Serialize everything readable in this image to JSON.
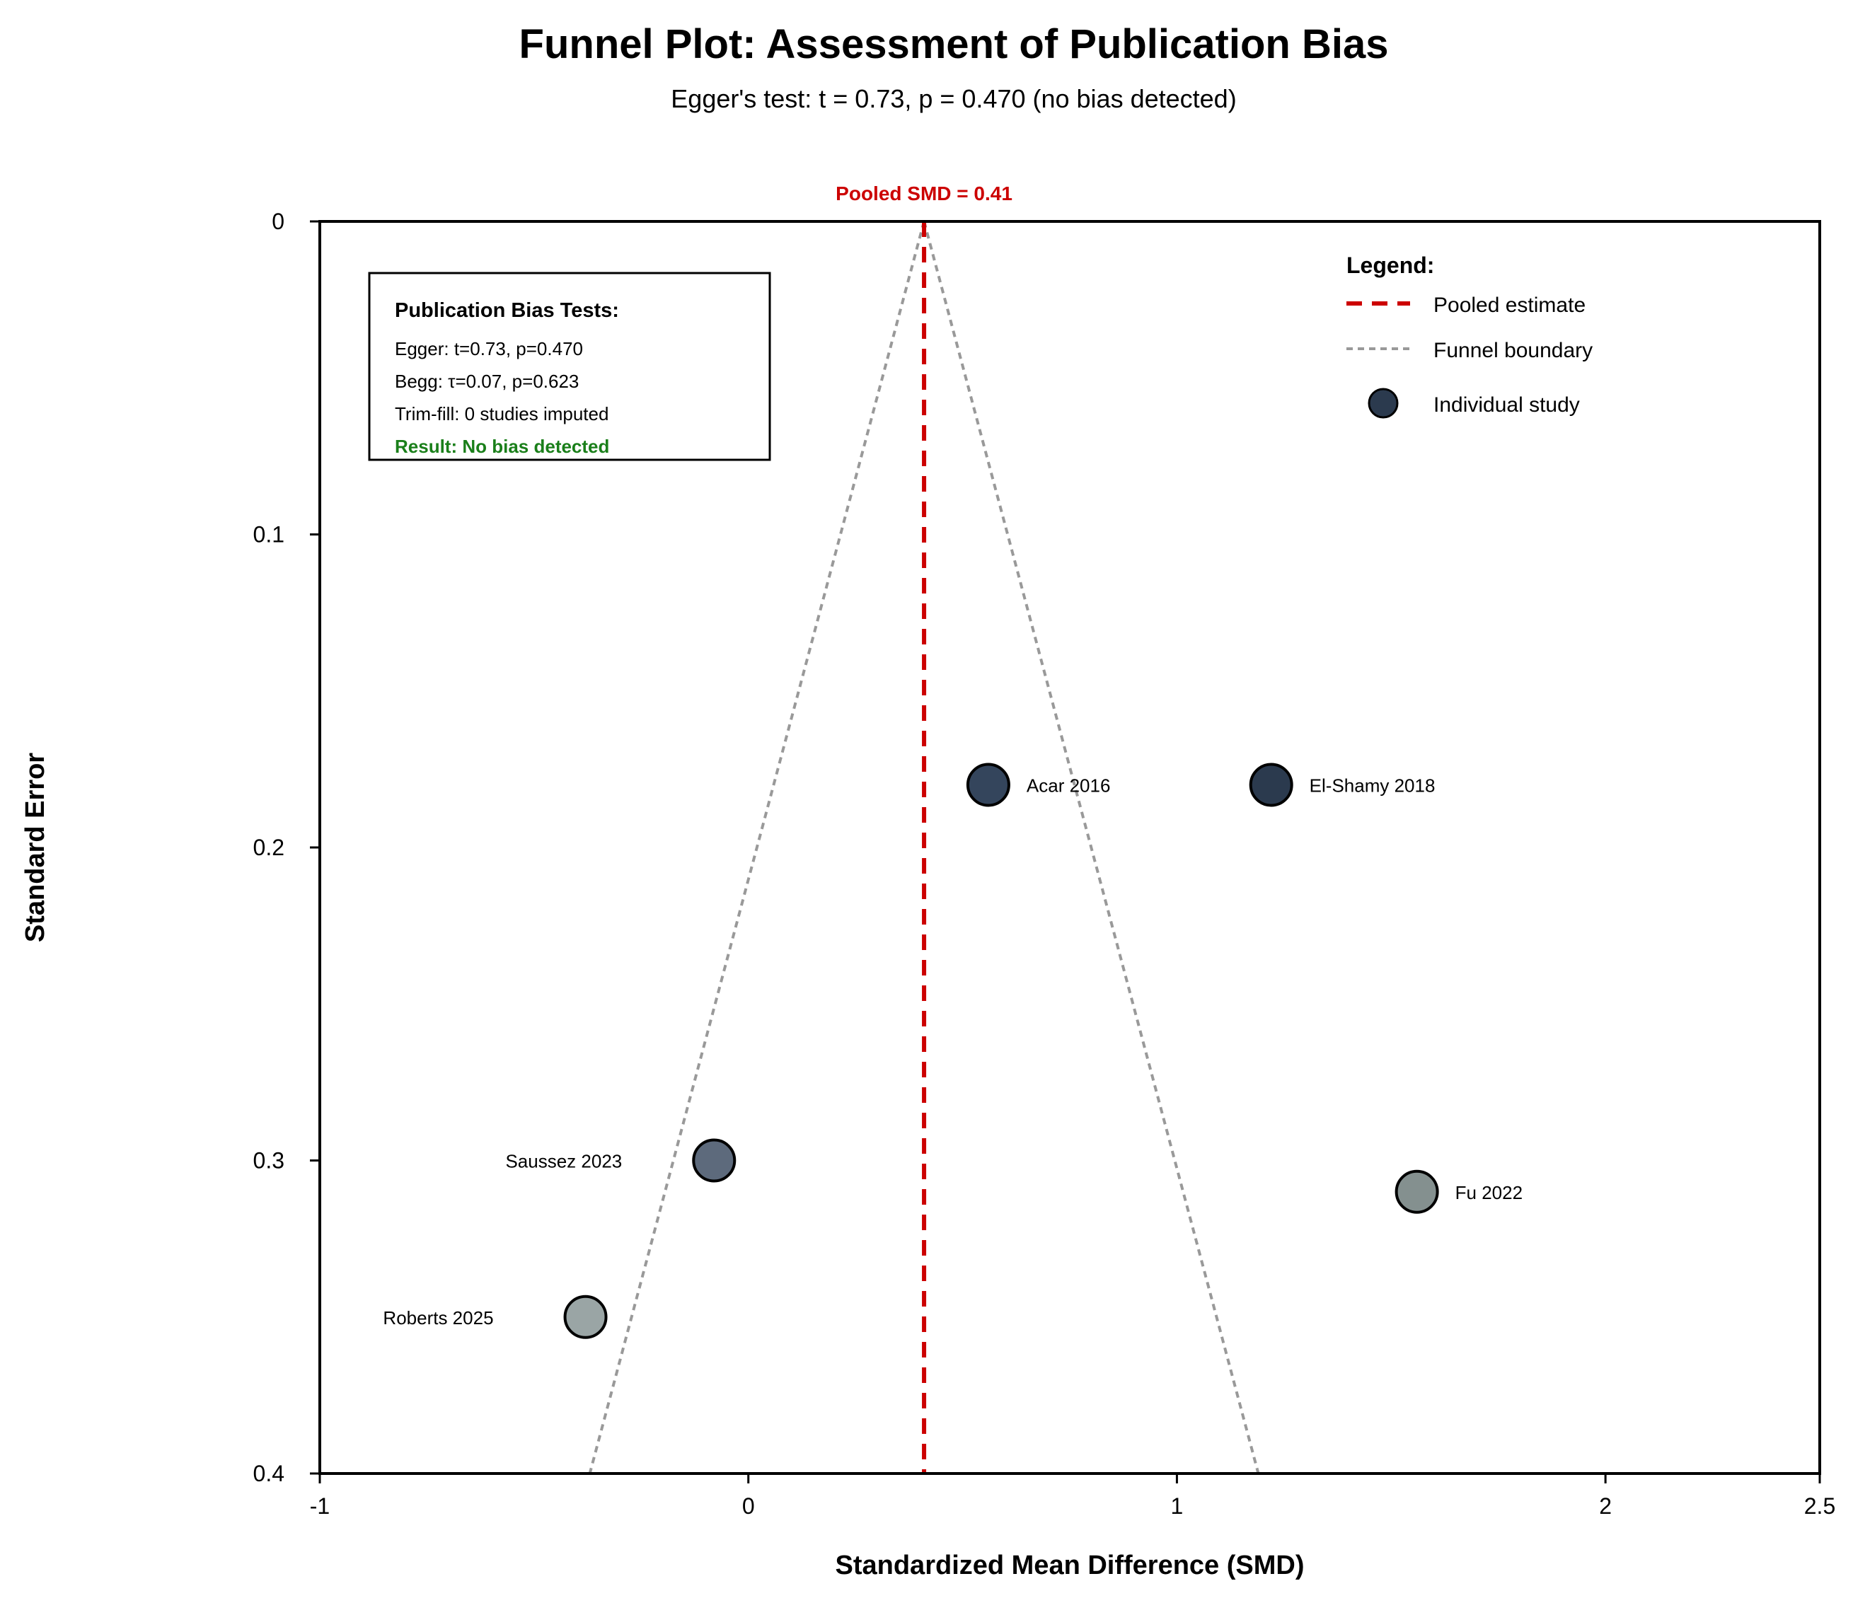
{
  "chart_data": {
    "type": "scatter",
    "title": "Funnel Plot: Assessment of Publication Bias",
    "subtitle": "Egger's test: t = 0.73, p = 0.470 (no bias detected)",
    "xlabel": "Standardized Mean Difference (SMD)",
    "ylabel": "Standard Error",
    "xlim": [
      -1,
      2.5
    ],
    "ylim": [
      0,
      0.4
    ],
    "y_inverted": true,
    "x_ticks": [
      {
        "value": -1,
        "label": "-1"
      },
      {
        "value": 0,
        "label": "0"
      },
      {
        "value": 1,
        "label": "1"
      },
      {
        "value": 2,
        "label": "2"
      },
      {
        "value": 2.5,
        "label": "2.5"
      }
    ],
    "y_ticks": [
      {
        "value": 0,
        "label": "0"
      },
      {
        "value": 0.1,
        "label": "0.1"
      },
      {
        "value": 0.2,
        "label": "0.2"
      },
      {
        "value": 0.3,
        "label": "0.3"
      },
      {
        "value": 0.4,
        "label": "0.4"
      }
    ],
    "pooled": {
      "value": 0.41,
      "label": "Pooled SMD = 0.41",
      "color": "#cc0000"
    },
    "funnel": {
      "apex": [
        0.41,
        0
      ],
      "bottom_left": [
        -0.37,
        0.4
      ],
      "bottom_right": [
        1.19,
        0.4
      ],
      "color": "#999999"
    },
    "studies": [
      {
        "name": "Acar 2016",
        "smd": 0.56,
        "se": 0.18,
        "color": "#34455c",
        "label_side": "right"
      },
      {
        "name": "El-Shamy 2018",
        "smd": 1.22,
        "se": 0.18,
        "color": "#2b3a4e",
        "label_side": "right"
      },
      {
        "name": "Saussez 2023",
        "smd": -0.08,
        "se": 0.3,
        "color": "#5d6a7c",
        "label_side": "left"
      },
      {
        "name": "Fu 2022",
        "smd": 1.56,
        "se": 0.31,
        "color": "#84908f",
        "label_side": "right"
      },
      {
        "name": "Roberts 2025",
        "smd": -0.38,
        "se": 0.35,
        "color": "#9aa5a5",
        "label_side": "left"
      }
    ],
    "legend": {
      "title": "Legend:",
      "position": "top-right",
      "items": [
        {
          "label": "Pooled estimate",
          "kind": "dashed-line",
          "color": "#cc0000"
        },
        {
          "label": "Funnel boundary",
          "kind": "dotted-line",
          "color": "#999999"
        },
        {
          "label": "Individual study",
          "kind": "marker",
          "color": "#2b3a4e"
        }
      ]
    },
    "bias_box": {
      "title": "Publication Bias Tests:",
      "lines": [
        "Egger: t=0.73, p=0.470",
        "Begg: τ=0.07, p=0.623",
        "Trim-fill: 0 studies imputed"
      ],
      "result": "Result: No bias detected",
      "result_color": "#1a7f1a"
    },
    "grid": false
  }
}
